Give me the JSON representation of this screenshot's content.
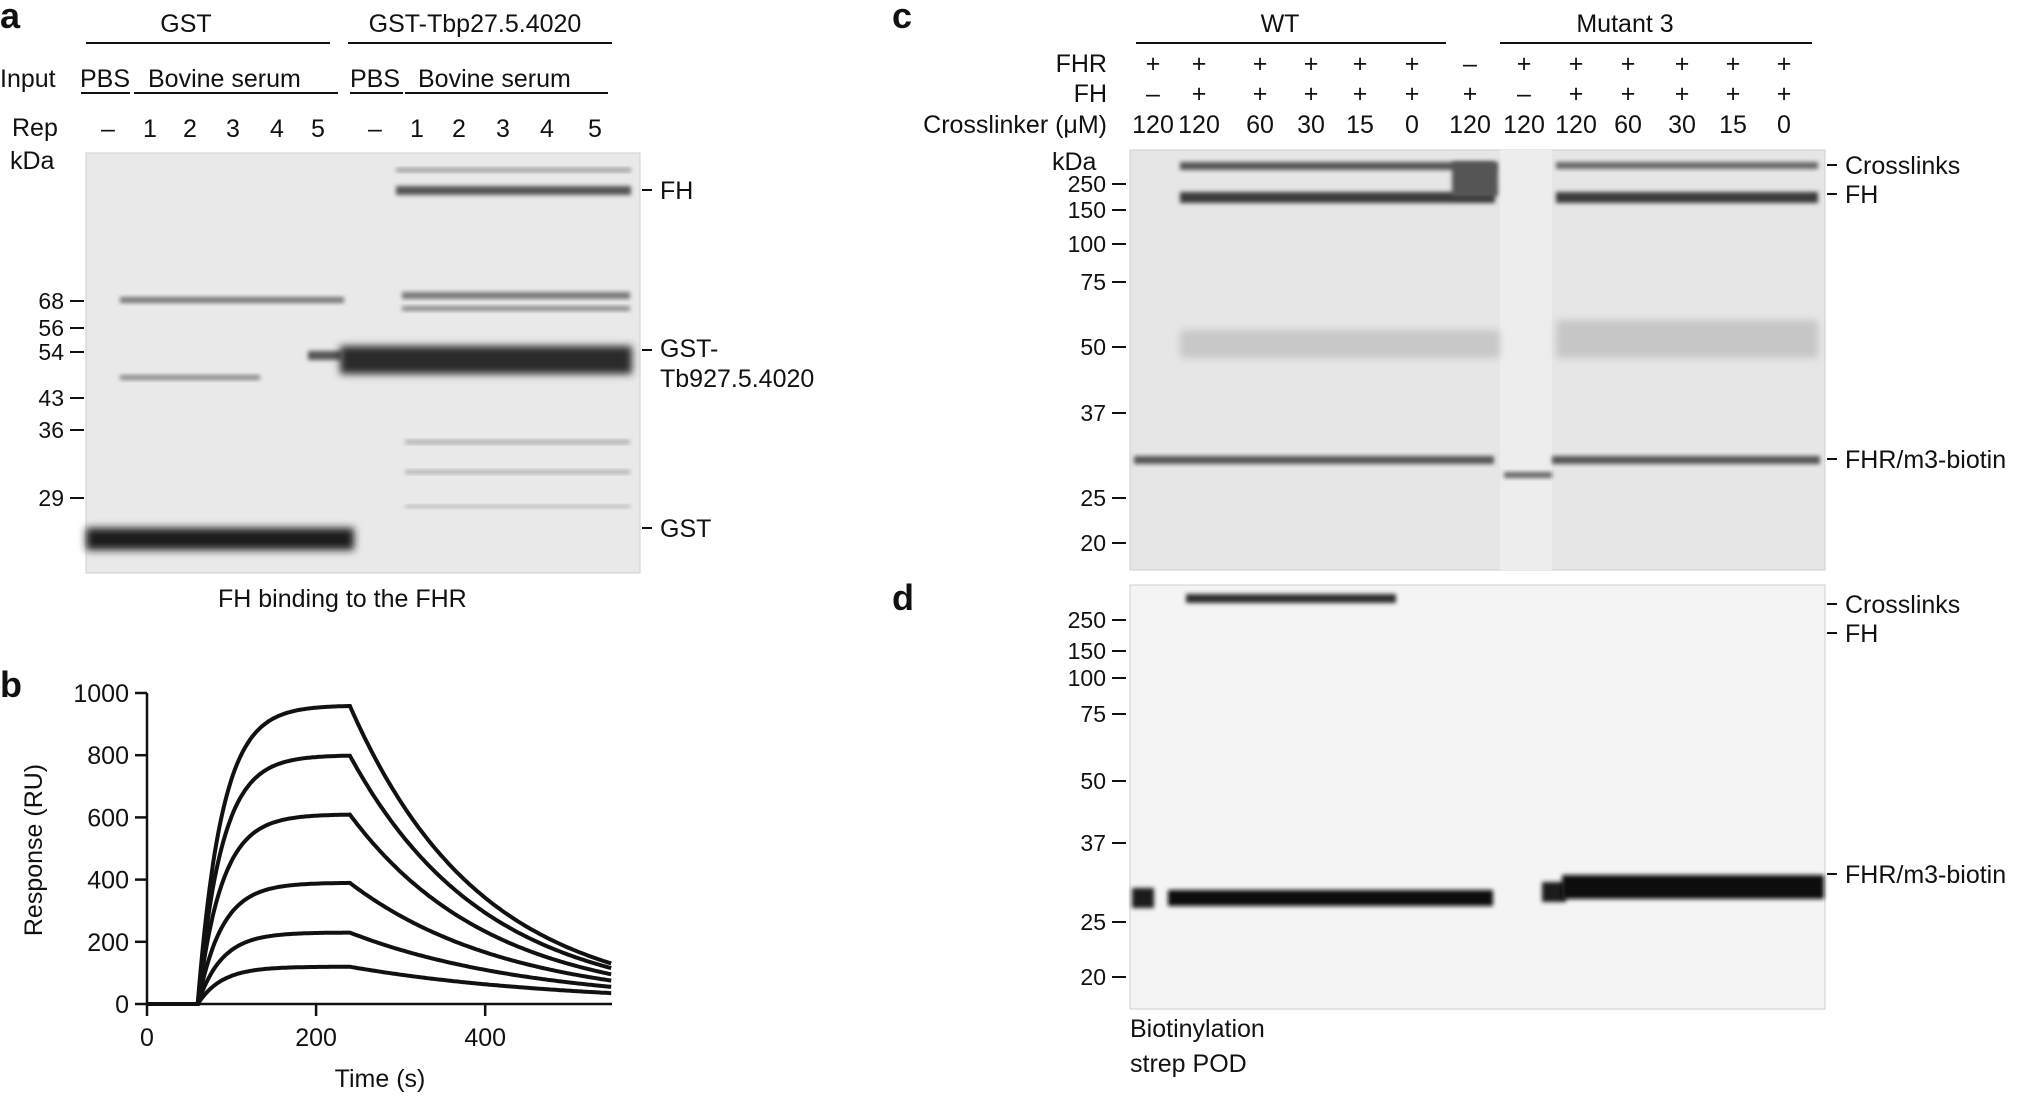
{
  "panel_a": {
    "letter": "a",
    "group_gst": "GST",
    "group_gst_tbp": "GST-Tbp27.5.4020",
    "input_label": "Input",
    "pbs_1": "PBS",
    "bovine_1": "Bovine  serum",
    "pbs_2": "PBS",
    "bovine_2": "Bovine  serum",
    "rep_label": "Rep",
    "rep_lanes": [
      "–",
      "1",
      "2",
      "3",
      "4",
      "5",
      "–",
      "1",
      "2",
      "3",
      "4",
      "5"
    ],
    "kda_label": "kDa",
    "markers": [
      "68",
      "56",
      "54",
      "43",
      "36",
      "29"
    ],
    "band_fh": "FH",
    "band_gst_tb_1": "GST-",
    "band_gst_tb_2": "Tb927.5.4020",
    "band_gst": "GST",
    "caption": "FH binding to the FHR"
  },
  "panel_b": {
    "letter": "b",
    "chart_data": {
      "type": "line",
      "xlabel": "Time (s)",
      "ylabel": "Response (RU)",
      "xlim": [
        0,
        550
      ],
      "ylim": [
        0,
        1000
      ],
      "xticks": [
        "0",
        "200",
        "400"
      ],
      "yticks": [
        "0",
        "200",
        "400",
        "600",
        "800",
        "1000"
      ],
      "injection_start_s": 60,
      "injection_end_s": 240,
      "series": [
        {
          "plateau_ru": 960,
          "end_ru": 130
        },
        {
          "plateau_ru": 800,
          "end_ru": 115
        },
        {
          "plateau_ru": 610,
          "end_ru": 95
        },
        {
          "plateau_ru": 390,
          "end_ru": 75
        },
        {
          "plateau_ru": 230,
          "end_ru": 55
        },
        {
          "plateau_ru": 120,
          "end_ru": 35
        }
      ]
    }
  },
  "panel_c": {
    "letter": "c",
    "group_wt": "WT",
    "group_mut": "Mutant 3",
    "row_fhr": "FHR",
    "row_fh": "FH",
    "row_cl": "Crosslinker (μM)",
    "fhr_signs": [
      "+",
      "+",
      "+",
      "+",
      "+",
      "+",
      "–",
      "+",
      "+",
      "+",
      "+",
      "+",
      "+"
    ],
    "fh_signs": [
      "–",
      "+",
      "+",
      "+",
      "+",
      "+",
      "+",
      "–",
      "+",
      "+",
      "+",
      "+",
      "+"
    ],
    "cl_values": [
      "120",
      "120",
      "60",
      "30",
      "15",
      "0",
      "120",
      "120",
      "120",
      "60",
      "30",
      "15",
      "0"
    ],
    "kda_label": "kDa",
    "markers": [
      "250",
      "150",
      "100",
      "75",
      "50",
      "37",
      "25",
      "20"
    ],
    "band_crosslinks": "Crosslinks",
    "band_fh": "FH",
    "band_fhr": "FHR/m3-biotin"
  },
  "panel_d": {
    "letter": "d",
    "markers": [
      "250",
      "150",
      "100",
      "75",
      "50",
      "37",
      "25",
      "20"
    ],
    "band_crosslinks": "Crosslinks",
    "band_fh": "FH",
    "band_fhr": "FHR/m3-biotin",
    "caption_1": "Biotinylation",
    "caption_2": "strep POD"
  }
}
